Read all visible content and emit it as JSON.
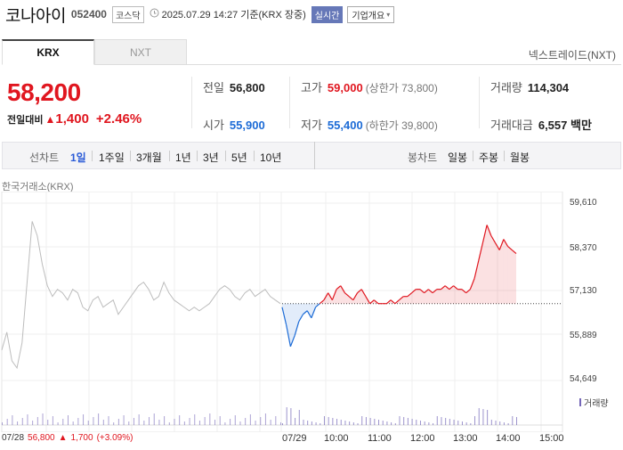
{
  "header": {
    "name": "코나아이",
    "code": "052400",
    "market": "코스닥",
    "timestamp": "2025.07.29 14:27 기준(KRX 장중)",
    "realtime": "실시간",
    "company_info": "기업개요",
    "clock_icon": "clock-icon"
  },
  "tabs": [
    {
      "label": "KRX",
      "active": true
    },
    {
      "label": "NXT",
      "active": false
    }
  ],
  "nxt_link": "넥스트레이드(NXT)",
  "price": {
    "current": "58,200",
    "change_label": "전일대비",
    "change_amount": "1,400",
    "change_pct": "+2.46%"
  },
  "quote": {
    "prev_close_label": "전일",
    "prev_close": "56,800",
    "high_label": "고가",
    "high": "59,000",
    "upper_limit": "(상한가 73,800)",
    "volume_label": "거래량",
    "volume": "114,304",
    "open_label": "시가",
    "open": "55,900",
    "low_label": "저가",
    "low": "55,400",
    "lower_limit": "(하한가 39,800)",
    "value_label": "거래대금",
    "value": "6,557 백만"
  },
  "periods": {
    "line_label": "선차트",
    "line_items": [
      "1일",
      "1주일",
      "3개월",
      "1년",
      "3년",
      "5년",
      "10년"
    ],
    "selected": "1일",
    "candle_label": "봉차트",
    "candle_items": [
      "일봉",
      "주봉",
      "월봉"
    ]
  },
  "chart_source": "한국거래소(KRX)",
  "chart_data": {
    "type": "line",
    "yticks": [
      "59,610",
      "58,370",
      "57,130",
      "55,889",
      "54,649"
    ],
    "ylim": [
      54649,
      59610
    ],
    "xticks": [
      "07/29",
      "10:00",
      "11:00",
      "12:00",
      "13:00",
      "14:00",
      "15:00"
    ],
    "reference_line": 56800,
    "volume_label": "거래량",
    "prev_day": {
      "label": "07/28",
      "close": "56,800",
      "change": "1,700",
      "pct": "(+3.09%)",
      "series": [
        55500,
        56000,
        55200,
        55000,
        55700,
        57400,
        59100,
        58700,
        57900,
        57300,
        57000,
        57200,
        57100,
        56900,
        57200,
        57100,
        56700,
        56600,
        56900,
        57000,
        56700,
        56800,
        56900,
        56500,
        56700,
        56900,
        57100,
        57300,
        57400,
        57200,
        56900,
        57000,
        57400,
        57100,
        56900,
        56800,
        56700,
        56600,
        56700,
        56600,
        56700,
        56800,
        57000,
        57200,
        57300,
        57200,
        57000,
        56900,
        57100,
        57200,
        57000,
        57100,
        57200,
        57000,
        56900,
        56800
      ]
    },
    "today": {
      "series": [
        56700,
        56200,
        55600,
        55900,
        56300,
        56500,
        56600,
        56400,
        56700,
        56800,
        56900,
        57100,
        56900,
        57200,
        57300,
        57100,
        57000,
        56900,
        57100,
        57200,
        57000,
        56800,
        56900,
        56800,
        56800,
        56800,
        56900,
        56800,
        56900,
        57000,
        57000,
        57100,
        57200,
        57200,
        57100,
        57200,
        57100,
        57200,
        57200,
        57300,
        57200,
        57300,
        57200,
        57200,
        57100,
        57200,
        57500,
        58000,
        58500,
        59000,
        58700,
        58500,
        58300,
        58600,
        58400,
        58300,
        58200
      ]
    }
  },
  "colors": {
    "up": "#e0161f",
    "down": "#1c6bd6",
    "prev_line": "#bdbdbd",
    "volume": "#7466b8"
  }
}
